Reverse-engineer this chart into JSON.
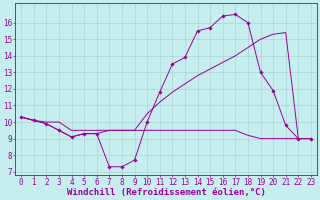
{
  "xlabel": "Windchill (Refroidissement éolien,°C)",
  "xlim": [
    -0.5,
    23.5
  ],
  "ylim": [
    6.8,
    17.2
  ],
  "yticks": [
    7,
    8,
    9,
    10,
    11,
    12,
    13,
    14,
    15,
    16
  ],
  "xticks": [
    0,
    1,
    2,
    3,
    4,
    5,
    6,
    7,
    8,
    9,
    10,
    11,
    12,
    13,
    14,
    15,
    16,
    17,
    18,
    19,
    20,
    21,
    22,
    23
  ],
  "background_color": "#c6eeee",
  "grid_color": "#aad4d4",
  "line_color": "#990099",
  "curve1_x": [
    0,
    1,
    2,
    3,
    4,
    5,
    6,
    7,
    8,
    9,
    10,
    11,
    12,
    13,
    14,
    15,
    16,
    17,
    18,
    19,
    20,
    21,
    22,
    23
  ],
  "curve1_y": [
    10.3,
    10.1,
    9.9,
    9.5,
    9.1,
    9.3,
    9.3,
    7.3,
    7.3,
    7.7,
    10.0,
    11.8,
    13.5,
    13.9,
    15.5,
    15.7,
    16.4,
    16.5,
    16.0,
    13.0,
    11.9,
    9.8,
    9.0,
    9.0
  ],
  "curve2_x": [
    0,
    1,
    2,
    3,
    4,
    5,
    6,
    7,
    8,
    9,
    10,
    11,
    12,
    13,
    14,
    15,
    16,
    17,
    18,
    19,
    20,
    21,
    22,
    23
  ],
  "curve2_y": [
    10.3,
    10.1,
    10.0,
    10.0,
    9.5,
    9.5,
    9.5,
    9.5,
    9.5,
    9.5,
    9.5,
    9.5,
    9.5,
    9.5,
    9.5,
    9.5,
    9.5,
    9.5,
    9.2,
    9.0,
    9.0,
    9.0,
    9.0,
    9.0
  ],
  "curve3_x": [
    0,
    1,
    2,
    3,
    4,
    5,
    6,
    7,
    8,
    9,
    10,
    11,
    12,
    13,
    14,
    15,
    16,
    17,
    18,
    19,
    20,
    21,
    22,
    23
  ],
  "curve3_y": [
    10.3,
    10.1,
    9.9,
    9.5,
    9.1,
    9.3,
    9.3,
    9.5,
    9.5,
    9.5,
    10.5,
    11.2,
    11.8,
    12.3,
    12.8,
    13.2,
    13.6,
    14.0,
    14.5,
    15.0,
    15.3,
    15.4,
    9.0,
    9.0
  ],
  "xlabel_fontsize": 6.5,
  "tick_fontsize": 5.5
}
